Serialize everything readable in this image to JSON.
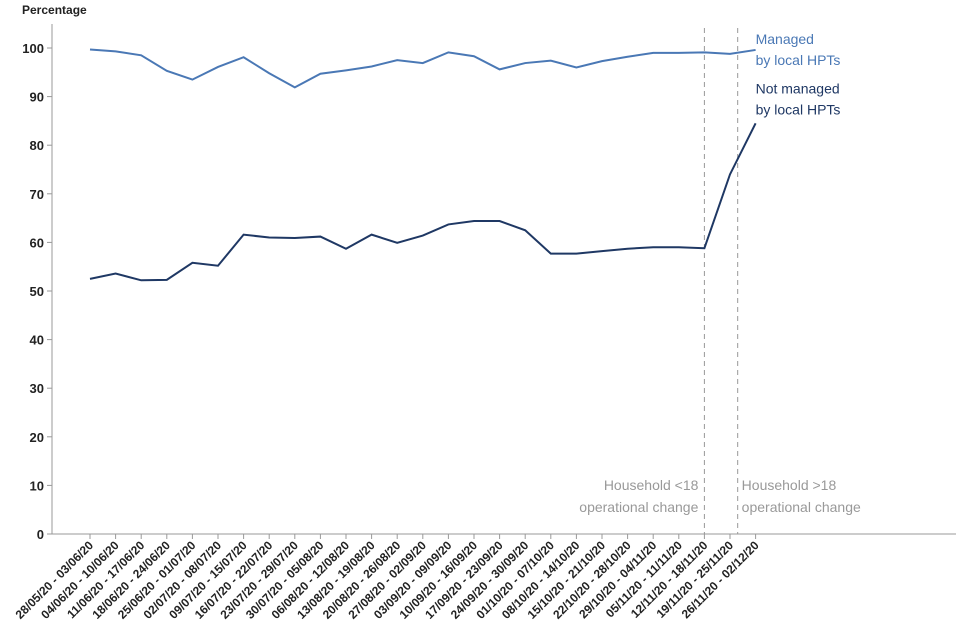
{
  "chart_data": {
    "type": "line",
    "y_axis_label": "Percentage",
    "categories": [
      "28/05/20 - 03/06/20",
      "04/06/20 - 10/06/20",
      "11/06/20 - 17/06/20",
      "18/06/20 - 24/06/20",
      "25/06/20 - 01/07/20",
      "02/07/20 - 08/07/20",
      "09/07/20 - 15/07/20",
      "16/07/20 - 22/07/20",
      "23/07/20 - 29/07/20",
      "30/07/20 - 05/08/20",
      "06/08/20 - 12/08/20",
      "13/08/20 - 19/08/20",
      "20/08/20 - 26/08/20",
      "27/08/20 - 02/09/20",
      "03/09/20 - 09/09/20",
      "10/09/20 - 16/09/20",
      "17/09/20 - 23/09/20",
      "24/09/20 - 30/09/20",
      "01/10/20 - 07/10/20",
      "08/10/20 - 14/10/20",
      "15/10/20 - 21/10/20",
      "22/10/20 - 28/10/20",
      "29/10/20 - 04/11/20",
      "05/11/20 - 11/11/20",
      "12/11/20 - 18/11/20",
      "19/11/20 - 25/11/20",
      "26/11/20 - 02/12/20"
    ],
    "series": [
      {
        "name": [
          "Managed",
          "by local HPTs"
        ],
        "color": "#4a78b5",
        "values": [
          99.7,
          99.3,
          98.5,
          95.3,
          93.5,
          96.1,
          98.1,
          94.8,
          91.9,
          94.7,
          95.4,
          96.2,
          97.5,
          96.9,
          99.1,
          98.3,
          95.6,
          96.9,
          97.4,
          96.0,
          97.3,
          98.2,
          99.0,
          99.0,
          99.1,
          98.8,
          99.6
        ]
      },
      {
        "name": [
          "Not managed",
          "by local HPTs"
        ],
        "color": "#1f3864",
        "values": [
          52.5,
          53.6,
          52.2,
          52.3,
          55.8,
          55.2,
          61.6,
          61.0,
          60.9,
          61.2,
          58.7,
          61.6,
          59.9,
          61.4,
          63.7,
          64.4,
          64.4,
          62.5,
          57.7,
          57.7,
          58.2,
          58.7,
          59.0,
          59.0,
          58.8,
          74.0,
          84.5
        ]
      }
    ],
    "annotations": [
      {
        "x": 24,
        "lines": [
          "Household <18",
          "operational change"
        ]
      },
      {
        "x": 25.3,
        "lines": [
          "Household >18",
          "operational change"
        ]
      }
    ],
    "ylim": [
      0,
      100
    ],
    "yticks": [
      0,
      10,
      20,
      30,
      40,
      50,
      60,
      70,
      80,
      90,
      100
    ],
    "grid": false
  }
}
